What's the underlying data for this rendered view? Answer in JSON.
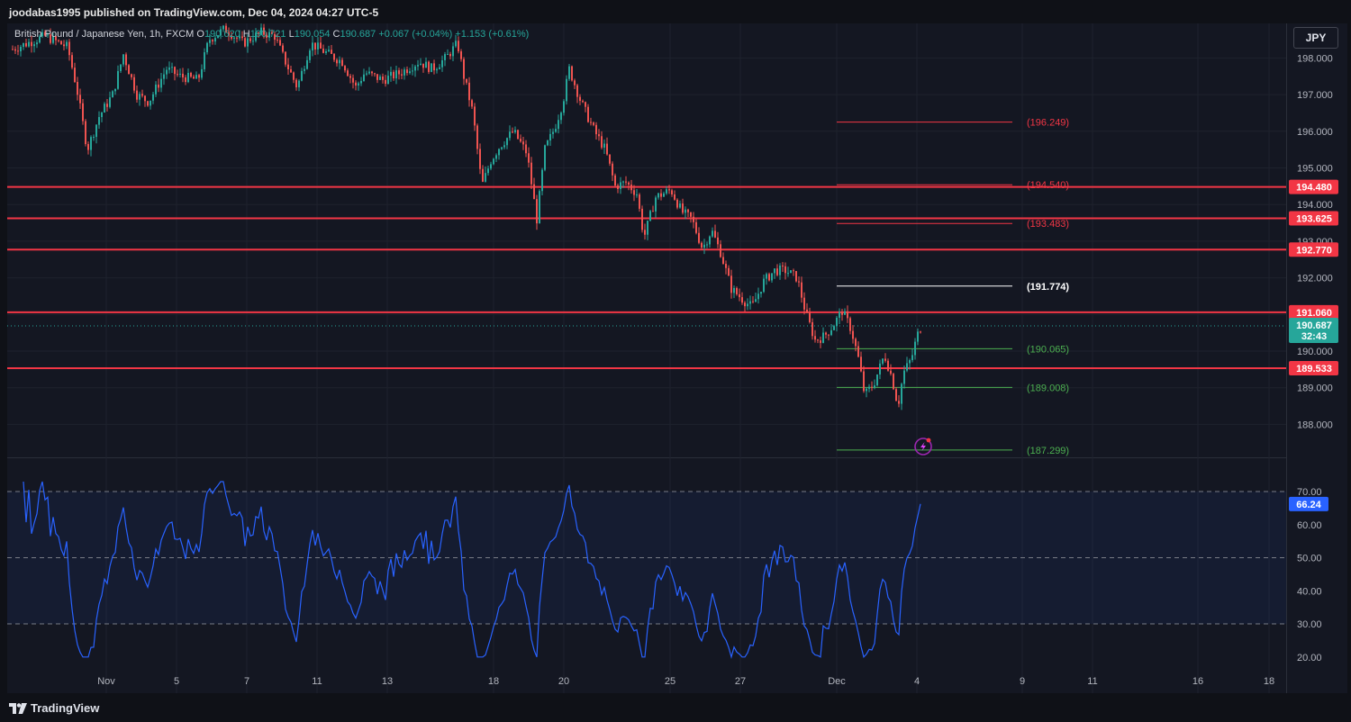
{
  "header": {
    "published": "joodabas1995 published on TradingView.com, Dec 04, 2024 04:27 UTC-5"
  },
  "symbol": {
    "name": "British Pound / Japanese Yen, 1h, FXCM",
    "o_label": "O",
    "o": "190.620",
    "h_label": "H",
    "h": "190.721",
    "l_label": "L",
    "l": "190.054",
    "c_label": "C",
    "c": "190.687",
    "change": "+0.067 (+0.04%)",
    "change2": "+1.153 (+0.61%)"
  },
  "currency_button": "JPY",
  "price_axis": {
    "ticks": [
      "198.000",
      "197.000",
      "196.000",
      "195.000",
      "194.000",
      "193.000",
      "192.000",
      "191.000",
      "190.000",
      "189.000",
      "188.000"
    ],
    "range": [
      187.4,
      199.0
    ]
  },
  "horizontal_levels": [
    {
      "label": "194.480",
      "value": 194.48
    },
    {
      "label": "193.625",
      "value": 193.625
    },
    {
      "label": "192.770",
      "value": 192.77
    },
    {
      "label": "191.060",
      "value": 191.06
    },
    {
      "label": "189.533",
      "value": 189.533
    }
  ],
  "current_price": {
    "label": "190.687",
    "countdown": "32:43",
    "value": 190.687
  },
  "projection_levels": [
    {
      "label": "(196.249)",
      "value": 196.249,
      "color": "#f23645"
    },
    {
      "label": "(194.540)",
      "value": 194.54,
      "color": "#f23645"
    },
    {
      "label": "(193.483)",
      "value": 193.483,
      "color": "#f23645"
    },
    {
      "label": "(191.774)",
      "value": 191.774,
      "color": "#ffffff"
    },
    {
      "label": "(190.065)",
      "value": 190.065,
      "color": "#4caf50"
    },
    {
      "label": "(189.008)",
      "value": 189.008,
      "color": "#4caf50"
    },
    {
      "label": "(187.299)",
      "value": 187.299,
      "color": "#4caf50"
    }
  ],
  "rsi": {
    "ticks": [
      "70.00",
      "60.00",
      "50.00",
      "40.00",
      "30.00",
      "20.00"
    ],
    "range": [
      17.5,
      74
    ],
    "current_label": "66.24",
    "current": 66.24,
    "line_color": "#2962ff"
  },
  "time_axis": {
    "labels": [
      "Nov",
      "5",
      "7",
      "11",
      "13",
      "18",
      "20",
      "25",
      "27",
      "Dec",
      "4",
      "9",
      "11",
      "16",
      "18"
    ]
  },
  "colors": {
    "up": "#26a69a",
    "down": "#ef5350",
    "level": "#f23645",
    "background": "#141722"
  },
  "footer": {
    "brand": "TradingView"
  },
  "icons": [
    "tradingview-logo-icon",
    "lightning-alert-icon"
  ]
}
